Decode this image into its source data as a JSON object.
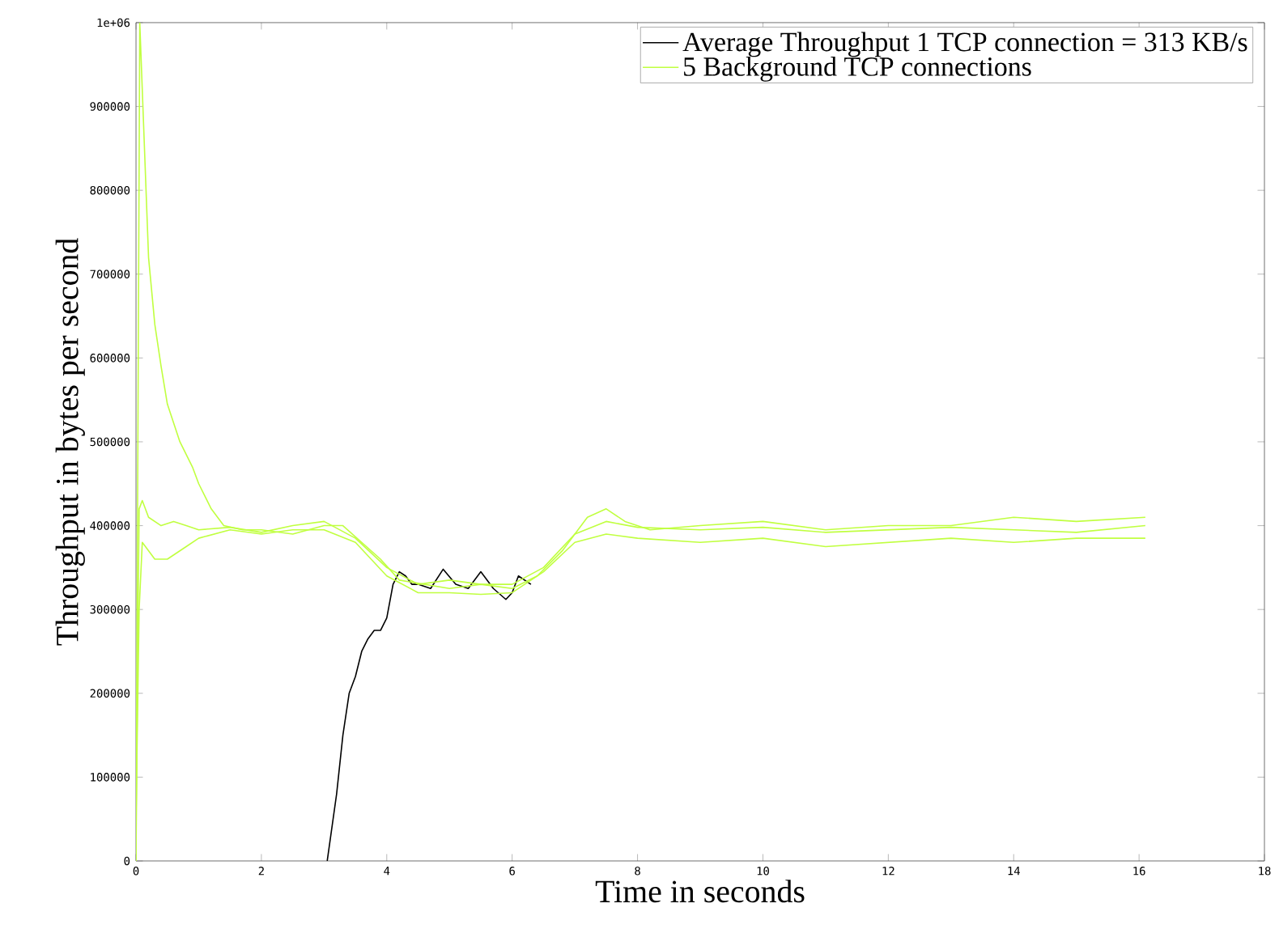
{
  "chart_data": {
    "type": "line",
    "xlabel": "Time in seconds",
    "ylabel": "Throughput in bytes per second",
    "xlim": [
      0,
      18
    ],
    "xticks": [
      0,
      2,
      4,
      6,
      8,
      10,
      12,
      14,
      16,
      18
    ],
    "ylim": [
      0,
      1000000
    ],
    "yticks": [
      0,
      100000,
      200000,
      300000,
      400000,
      500000,
      600000,
      700000,
      800000,
      900000,
      {
        "value": 1000000,
        "label": "1e+06"
      }
    ],
    "grid": false,
    "legend": "top right",
    "marker": "none",
    "line_style": "solid",
    "series": [
      {
        "name": "Average Throughput 1 TCP connection = 313 KB/s",
        "color": "#000000",
        "x": [
          3.05,
          3.2,
          3.3,
          3.4,
          3.5,
          3.6,
          3.7,
          3.8,
          3.9,
          4.0,
          4.1,
          4.2,
          4.3,
          4.4,
          4.5,
          4.7,
          4.9,
          5.1,
          5.3,
          5.5,
          5.7,
          5.9,
          6.0,
          6.1,
          6.3
        ],
        "values": [
          0,
          80000,
          150000,
          200000,
          220000,
          250000,
          265000,
          275000,
          275000,
          290000,
          330000,
          345000,
          340000,
          330000,
          330000,
          325000,
          348000,
          330000,
          325000,
          345000,
          325000,
          312000,
          320000,
          340000,
          330000
        ]
      },
      {
        "name": "5 Background TCP connections",
        "color": "#c0ff40",
        "x": [
          0,
          0.03,
          0.06,
          0.1,
          0.2,
          0.3,
          0.4,
          0.5,
          0.7,
          0.9,
          1.0,
          1.2,
          1.4,
          1.7,
          2.0,
          2.5,
          3.0,
          3.3,
          3.6,
          3.9,
          4.2,
          4.6,
          5.0,
          5.5,
          6.0,
          6.4,
          6.8,
          7.2,
          7.5,
          7.8,
          8.2,
          9.0,
          10.0,
          11.0,
          12.0,
          13.0,
          14.0,
          15.0,
          16.1
        ],
        "values": [
          0,
          500000,
          1000000,
          920000,
          720000,
          640000,
          590000,
          545000,
          500000,
          470000,
          450000,
          420000,
          400000,
          395000,
          395000,
          390000,
          400000,
          400000,
          380000,
          360000,
          335000,
          330000,
          325000,
          330000,
          325000,
          340000,
          370000,
          410000,
          420000,
          405000,
          395000,
          400000,
          405000,
          395000,
          400000,
          400000,
          410000,
          405000,
          410000
        ]
      },
      {
        "color": "#c0ff40",
        "x": [
          0,
          0.05,
          0.1,
          0.3,
          0.5,
          0.8,
          1.0,
          1.5,
          2.0,
          2.5,
          3.0,
          3.5,
          4.0,
          4.5,
          5.0,
          5.5,
          6.0,
          6.5,
          7.0,
          7.5,
          8.0,
          9.0,
          10.0,
          11.0,
          12.0,
          13.0,
          14.0,
          15.0,
          16.1
        ],
        "values": [
          50000,
          300000,
          380000,
          360000,
          360000,
          375000,
          385000,
          395000,
          390000,
          395000,
          395000,
          380000,
          340000,
          320000,
          320000,
          318000,
          320000,
          345000,
          380000,
          390000,
          385000,
          380000,
          385000,
          375000,
          380000,
          385000,
          380000,
          385000,
          385000
        ]
      },
      {
        "color": "#c0ff40",
        "x": [
          0,
          0.02,
          0.05,
          0.1,
          0.2,
          0.4,
          0.6,
          0.8,
          1.0,
          1.5,
          2.0,
          2.5,
          3.0,
          3.5,
          4.0,
          4.5,
          5.0,
          5.5,
          6.0,
          6.5,
          7.0,
          7.5,
          8.0,
          9.0,
          10.0,
          11.0,
          12.0,
          13.0,
          14.0,
          15.0,
          16.1
        ],
        "values": [
          0,
          200000,
          420000,
          430000,
          410000,
          400000,
          405000,
          400000,
          395000,
          398000,
          392000,
          400000,
          405000,
          385000,
          350000,
          330000,
          335000,
          330000,
          330000,
          350000,
          390000,
          405000,
          398000,
          395000,
          398000,
          392000,
          395000,
          398000,
          395000,
          392000,
          400000
        ]
      }
    ]
  }
}
